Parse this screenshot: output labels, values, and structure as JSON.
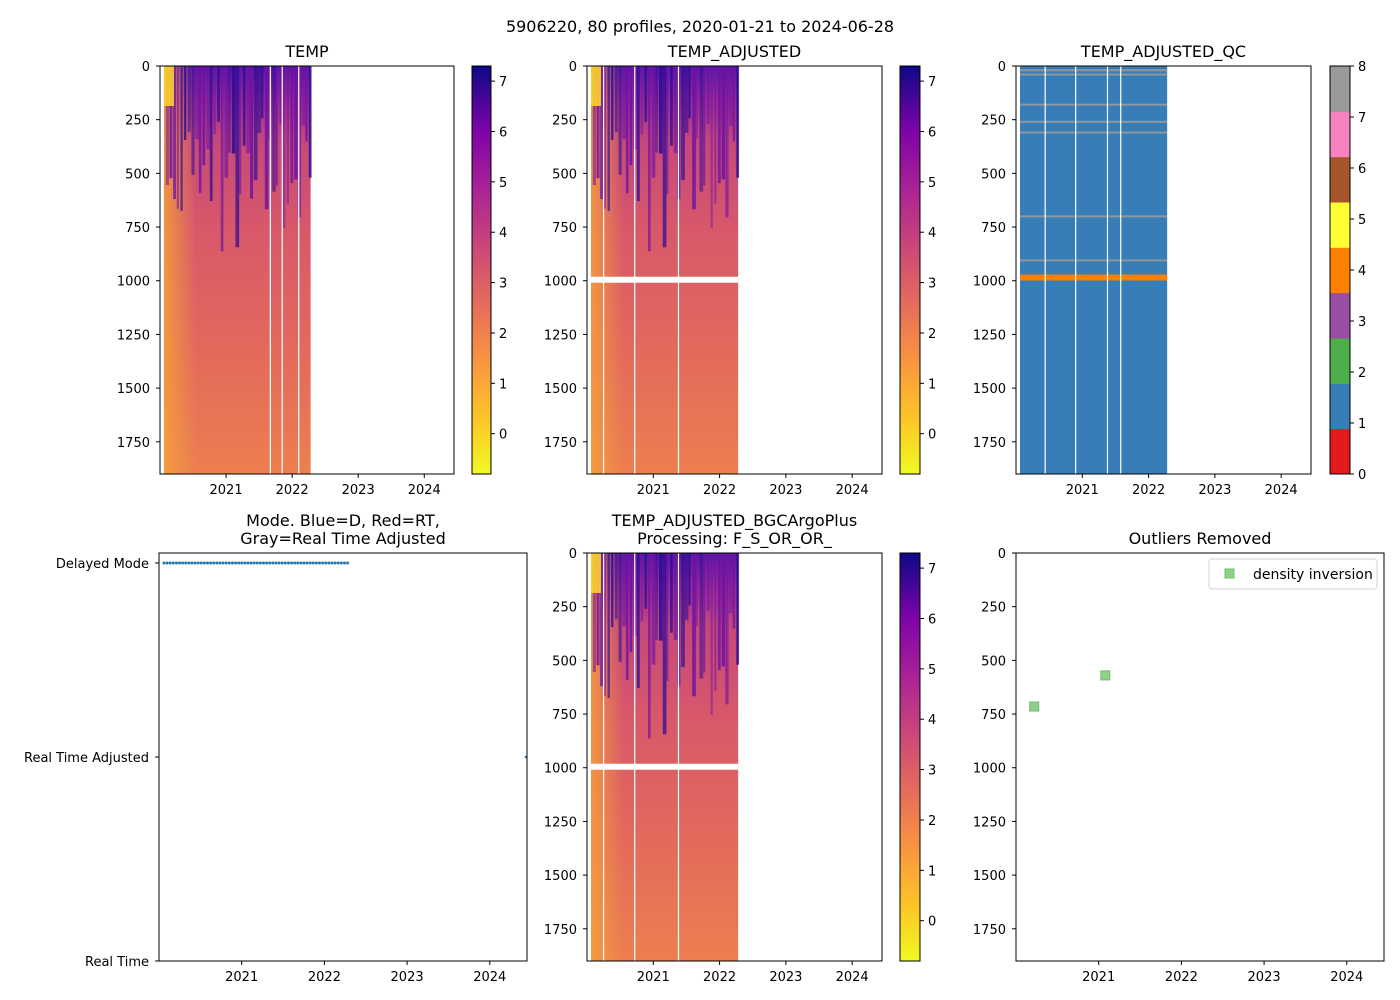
{
  "figure": {
    "suptitle": "5906220, 80 profiles, 2020-01-21 to 2024-06-28"
  },
  "chart_data": [
    {
      "id": "temp",
      "type": "heatmap",
      "title": "TEMP",
      "xlim": [
        2020.0,
        2024.45
      ],
      "ylim": [
        1900,
        0
      ],
      "xticks": [
        2021,
        2022,
        2023,
        2024
      ],
      "xtick_labels": [
        "2021",
        "2022",
        "2023",
        "2024"
      ],
      "yticks": [
        0,
        250,
        500,
        750,
        1000,
        1250,
        1500,
        1750
      ],
      "ytick_labels": [
        "0",
        "250",
        "500",
        "750",
        "1000",
        "1250",
        "1500",
        "1750"
      ],
      "data_extent": [
        2020.06,
        2022.28
      ],
      "gap_dates": [
        2021.67,
        2021.85,
        2022.1
      ],
      "has_qc_gap": false,
      "colorbar": {
        "cmap": "plasma_r",
        "vmin": -0.8,
        "vmax": 7.3,
        "ticks": [
          0,
          1,
          2,
          3,
          4,
          5,
          6,
          7
        ],
        "tick_labels": [
          "0",
          "1",
          "2",
          "3",
          "4",
          "5",
          "6",
          "7"
        ]
      }
    },
    {
      "id": "temp_adjusted",
      "type": "heatmap",
      "title": "TEMP_ADJUSTED",
      "xlim": [
        2020.0,
        2024.45
      ],
      "ylim": [
        1900,
        0
      ],
      "xticks": [
        2021,
        2022,
        2023,
        2024
      ],
      "xtick_labels": [
        "2021",
        "2022",
        "2023",
        "2024"
      ],
      "yticks": [
        0,
        250,
        500,
        750,
        1000,
        1250,
        1500,
        1750
      ],
      "ytick_labels": [
        "0",
        "250",
        "500",
        "750",
        "1000",
        "1250",
        "1500",
        "1750"
      ],
      "data_extent": [
        2020.06,
        2022.28
      ],
      "gap_dates": [
        2020.25,
        2020.72,
        2021.38
      ],
      "has_qc_gap": true,
      "colorbar": {
        "cmap": "plasma_r",
        "vmin": -0.8,
        "vmax": 7.3,
        "ticks": [
          0,
          1,
          2,
          3,
          4,
          5,
          6,
          7
        ],
        "tick_labels": [
          "0",
          "1",
          "2",
          "3",
          "4",
          "5",
          "6",
          "7"
        ]
      }
    },
    {
      "id": "temp_adjusted_qc",
      "type": "heatmap",
      "title": "TEMP_ADJUSTED_QC",
      "xlim": [
        2020.0,
        2024.45
      ],
      "ylim": [
        1900,
        0
      ],
      "xticks": [
        2021,
        2022,
        2023,
        2024
      ],
      "xtick_labels": [
        "2021",
        "2022",
        "2023",
        "2024"
      ],
      "yticks": [
        0,
        250,
        500,
        750,
        1000,
        1250,
        1500,
        1750
      ],
      "ytick_labels": [
        "0",
        "250",
        "500",
        "750",
        "1000",
        "1250",
        "1500",
        "1750"
      ],
      "data_extent": [
        2020.06,
        2022.28
      ],
      "gap_dates": [
        2020.44,
        2020.9,
        2021.38,
        2021.58
      ],
      "background_flag": 1,
      "flag_4_depth": 985,
      "flag_8_depths": [
        20,
        40,
        180,
        260,
        310,
        700,
        905
      ],
      "colorbar": {
        "cmap": "Set1",
        "vmin": 0,
        "vmax": 8,
        "colors": [
          "#e41a1c",
          "#377eb8",
          "#4daf4a",
          "#984ea3",
          "#ff7f00",
          "#ffff33",
          "#a65628",
          "#f781bf",
          "#999999"
        ],
        "ticks": [
          0,
          1,
          2,
          3,
          4,
          5,
          6,
          7,
          8
        ],
        "tick_labels": [
          "0",
          "1",
          "2",
          "3",
          "4",
          "5",
          "6",
          "7",
          "8"
        ]
      }
    },
    {
      "id": "mode",
      "type": "scatter",
      "title_lines": [
        "Mode. Blue=D, Red=RT,",
        "Gray=Real Time Adjusted"
      ],
      "xlim": [
        2020.0,
        2024.45
      ],
      "ylim": [
        0,
        2
      ],
      "xticks": [
        2021,
        2022,
        2023,
        2024
      ],
      "xtick_labels": [
        "2021",
        "2022",
        "2023",
        "2024"
      ],
      "ycategories": [
        "Real Time",
        "Real Time Adjusted",
        "Delayed Mode"
      ],
      "yticks": [
        0,
        1,
        2
      ],
      "series": [
        {
          "name": "D",
          "color": "#1f77b4",
          "y": 2,
          "x_start": 2020.06,
          "x_end": 2022.28,
          "count": 60
        },
        {
          "name": "Real Time Adjusted",
          "color": "#1f77b4",
          "y": 1,
          "x": [
            2024.5
          ]
        }
      ]
    },
    {
      "id": "temp_bgc",
      "type": "heatmap",
      "title_lines": [
        "TEMP_ADJUSTED_BGCArgoPlus",
        "Processing: F_S_OR_OR_"
      ],
      "xlim": [
        2020.0,
        2024.45
      ],
      "ylim": [
        1900,
        0
      ],
      "xticks": [
        2021,
        2022,
        2023,
        2024
      ],
      "xtick_labels": [
        "2021",
        "2022",
        "2023",
        "2024"
      ],
      "yticks": [
        0,
        250,
        500,
        750,
        1000,
        1250,
        1500,
        1750
      ],
      "ytick_labels": [
        "0",
        "250",
        "500",
        "750",
        "1000",
        "1250",
        "1500",
        "1750"
      ],
      "data_extent": [
        2020.06,
        2022.28
      ],
      "gap_dates": [
        2020.25,
        2020.72,
        2021.38
      ],
      "has_qc_gap": true,
      "colorbar": {
        "cmap": "plasma_r",
        "vmin": -0.8,
        "vmax": 7.3,
        "ticks": [
          0,
          1,
          2,
          3,
          4,
          5,
          6,
          7
        ],
        "tick_labels": [
          "0",
          "1",
          "2",
          "3",
          "4",
          "5",
          "6",
          "7"
        ]
      }
    },
    {
      "id": "outliers",
      "type": "scatter",
      "title": "Outliers Removed",
      "xlim": [
        2020.0,
        2024.45
      ],
      "ylim": [
        1900,
        0
      ],
      "xticks": [
        2021,
        2022,
        2023,
        2024
      ],
      "xtick_labels": [
        "2021",
        "2022",
        "2023",
        "2024"
      ],
      "yticks": [
        0,
        250,
        500,
        750,
        1000,
        1250,
        1500,
        1750
      ],
      "ytick_labels": [
        "0",
        "250",
        "500",
        "750",
        "1000",
        "1250",
        "1500",
        "1750"
      ],
      "legend": {
        "location": "top-right",
        "label": "density inversion",
        "color": "#8fd18a"
      },
      "series": [
        {
          "name": "density inversion",
          "color": "#8fd18a",
          "marker": "square",
          "points": [
            {
              "x": 2020.22,
              "y": 715
            },
            {
              "x": 2021.08,
              "y": 570
            }
          ]
        }
      ]
    }
  ]
}
